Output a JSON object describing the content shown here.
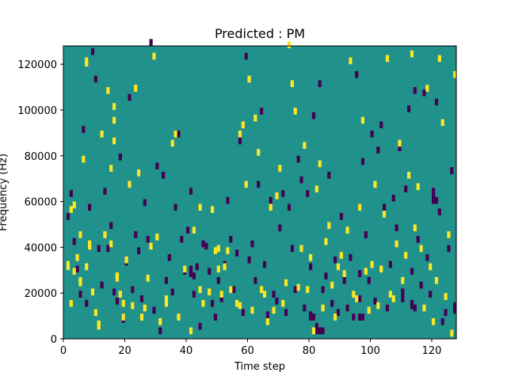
{
  "chart_data": {
    "type": "heatmap",
    "title": "Predicted : PM",
    "xlabel": "Time step",
    "ylabel": "Frequency (Hz)",
    "xlim": [
      0,
      128
    ],
    "ylim": [
      0,
      128000
    ],
    "x_ticks": [
      0,
      20,
      40,
      60,
      80,
      100,
      120
    ],
    "y_ticks": [
      0,
      20000,
      40000,
      60000,
      80000,
      100000,
      120000
    ],
    "y_tick_labels": [
      "0",
      "20000",
      "40000",
      "60000",
      "80000",
      "100000",
      "120000"
    ],
    "n_time_steps": 128,
    "n_freq_bins": 128,
    "bin_width_hz": 1000,
    "value_levels": [
      -1,
      0,
      1
    ],
    "colormap": {
      "-1": "#440154",
      "0": "#21918c",
      "1": "#fde725"
    },
    "background_value": 0,
    "cells_high": [
      [
        1,
        30
      ],
      [
        1,
        31
      ],
      [
        2,
        55
      ],
      [
        3,
        57
      ],
      [
        2,
        14
      ],
      [
        3,
        28
      ],
      [
        4,
        34
      ],
      [
        5,
        23
      ],
      [
        5,
        24
      ],
      [
        5,
        44
      ],
      [
        6,
        77
      ],
      [
        7,
        119
      ],
      [
        7,
        120
      ],
      [
        7,
        30
      ],
      [
        8,
        39
      ],
      [
        8,
        40
      ],
      [
        9,
        19
      ],
      [
        10,
        10
      ],
      [
        11,
        4
      ],
      [
        11,
        5
      ],
      [
        12,
        88
      ],
      [
        13,
        44
      ],
      [
        14,
        107
      ],
      [
        15,
        73
      ],
      [
        15,
        40
      ],
      [
        16,
        100
      ],
      [
        16,
        94
      ],
      [
        16,
        85
      ],
      [
        17,
        25
      ],
      [
        17,
        26
      ],
      [
        18,
        18
      ],
      [
        19,
        14
      ],
      [
        19,
        8
      ],
      [
        20,
        33
      ],
      [
        21,
        66
      ],
      [
        22,
        13
      ],
      [
        23,
        108
      ],
      [
        24,
        71
      ],
      [
        25,
        8
      ],
      [
        26,
        12
      ],
      [
        27,
        25
      ],
      [
        28,
        39
      ],
      [
        29,
        122
      ],
      [
        30,
        43
      ],
      [
        31,
        6
      ],
      [
        33,
        16
      ],
      [
        33,
        14
      ],
      [
        35,
        84
      ],
      [
        36,
        88
      ],
      [
        37,
        8
      ],
      [
        39,
        29
      ],
      [
        41,
        2
      ],
      [
        42,
        46
      ],
      [
        44,
        20
      ],
      [
        44,
        56
      ],
      [
        45,
        14
      ],
      [
        47,
        19
      ],
      [
        48,
        55
      ],
      [
        49,
        37
      ],
      [
        50,
        29
      ],
      [
        50,
        38
      ],
      [
        51,
        18
      ],
      [
        52,
        30
      ],
      [
        53,
        37
      ],
      [
        54,
        20
      ],
      [
        56,
        14
      ],
      [
        57,
        13
      ],
      [
        57,
        88
      ],
      [
        58,
        92
      ],
      [
        59,
        66
      ],
      [
        60,
        112
      ],
      [
        61,
        11
      ],
      [
        62,
        95
      ],
      [
        63,
        80
      ],
      [
        64,
        20
      ],
      [
        65,
        18
      ],
      [
        66,
        6
      ],
      [
        67,
        56
      ],
      [
        68,
        11
      ],
      [
        69,
        61
      ],
      [
        70,
        73
      ],
      [
        71,
        14
      ],
      [
        72,
        23
      ],
      [
        73,
        127
      ],
      [
        74,
        110
      ],
      [
        75,
        98
      ],
      [
        76,
        21
      ],
      [
        77,
        38
      ],
      [
        78,
        83
      ],
      [
        79,
        20
      ],
      [
        80,
        34
      ],
      [
        81,
        2
      ],
      [
        82,
        64
      ],
      [
        83,
        75
      ],
      [
        84,
        12
      ],
      [
        85,
        41
      ],
      [
        86,
        48
      ],
      [
        87,
        22
      ],
      [
        88,
        8
      ],
      [
        89,
        30
      ],
      [
        90,
        35
      ],
      [
        91,
        27
      ],
      [
        92,
        46
      ],
      [
        93,
        120
      ],
      [
        94,
        18
      ],
      [
        95,
        16
      ],
      [
        96,
        56
      ],
      [
        97,
        94
      ],
      [
        98,
        28
      ],
      [
        99,
        11
      ],
      [
        100,
        31
      ],
      [
        101,
        66
      ],
      [
        102,
        13
      ],
      [
        103,
        29
      ],
      [
        104,
        53
      ],
      [
        105,
        121
      ],
      [
        106,
        18
      ],
      [
        107,
        16
      ],
      [
        108,
        40
      ],
      [
        109,
        84
      ],
      [
        110,
        24
      ],
      [
        111,
        35
      ],
      [
        112,
        70
      ],
      [
        113,
        123
      ],
      [
        114,
        47
      ],
      [
        115,
        65
      ],
      [
        116,
        38
      ],
      [
        117,
        12
      ],
      [
        118,
        108
      ],
      [
        119,
        30
      ],
      [
        120,
        6
      ],
      [
        121,
        24
      ],
      [
        122,
        121
      ],
      [
        123,
        93
      ],
      [
        124,
        17
      ],
      [
        125,
        44
      ],
      [
        126,
        1
      ],
      [
        127,
        114
      ]
    ],
    "cells_low": [
      [
        1,
        52
      ],
      [
        2,
        62
      ],
      [
        3,
        41
      ],
      [
        4,
        29
      ],
      [
        5,
        18
      ],
      [
        6,
        90
      ],
      [
        7,
        14
      ],
      [
        8,
        56
      ],
      [
        9,
        124
      ],
      [
        10,
        112
      ],
      [
        11,
        38
      ],
      [
        12,
        22
      ],
      [
        13,
        63
      ],
      [
        14,
        38
      ],
      [
        15,
        48
      ],
      [
        16,
        19
      ],
      [
        17,
        15
      ],
      [
        18,
        78
      ],
      [
        19,
        7
      ],
      [
        20,
        32
      ],
      [
        21,
        104
      ],
      [
        22,
        20
      ],
      [
        23,
        44
      ],
      [
        24,
        37
      ],
      [
        25,
        16
      ],
      [
        26,
        58
      ],
      [
        27,
        42
      ],
      [
        28,
        128
      ],
      [
        29,
        11
      ],
      [
        30,
        74
      ],
      [
        31,
        2
      ],
      [
        32,
        70
      ],
      [
        33,
        24
      ],
      [
        34,
        34
      ],
      [
        35,
        19
      ],
      [
        36,
        56
      ],
      [
        37,
        88
      ],
      [
        38,
        42
      ],
      [
        39,
        28
      ],
      [
        40,
        46
      ],
      [
        41,
        63
      ],
      [
        42,
        26
      ],
      [
        43,
        30
      ],
      [
        44,
        4
      ],
      [
        45,
        40
      ],
      [
        46,
        39
      ],
      [
        47,
        28
      ],
      [
        48,
        14
      ],
      [
        49,
        8
      ],
      [
        50,
        24
      ],
      [
        51,
        16
      ],
      [
        52,
        31
      ],
      [
        53,
        59
      ],
      [
        54,
        42
      ],
      [
        55,
        20
      ],
      [
        56,
        36
      ],
      [
        57,
        85
      ],
      [
        58,
        10
      ],
      [
        59,
        122
      ],
      [
        60,
        33
      ],
      [
        61,
        40
      ],
      [
        62,
        24
      ],
      [
        63,
        66
      ],
      [
        64,
        98
      ],
      [
        65,
        31
      ],
      [
        66,
        9
      ],
      [
        67,
        59
      ],
      [
        68,
        18
      ],
      [
        69,
        15
      ],
      [
        70,
        47
      ],
      [
        71,
        62
      ],
      [
        72,
        10
      ],
      [
        73,
        56
      ],
      [
        74,
        38
      ],
      [
        75,
        20
      ],
      [
        76,
        77
      ],
      [
        77,
        68
      ],
      [
        78,
        12
      ],
      [
        79,
        62
      ],
      [
        80,
        30
      ],
      [
        81,
        96
      ],
      [
        82,
        4
      ],
      [
        83,
        110
      ],
      [
        84,
        20
      ],
      [
        85,
        26
      ],
      [
        86,
        70
      ],
      [
        87,
        14
      ],
      [
        88,
        33
      ],
      [
        89,
        10
      ],
      [
        90,
        52
      ],
      [
        91,
        24
      ],
      [
        92,
        12
      ],
      [
        93,
        34
      ],
      [
        94,
        8
      ],
      [
        95,
        114
      ],
      [
        96,
        27
      ],
      [
        97,
        76
      ],
      [
        98,
        44
      ],
      [
        99,
        24
      ],
      [
        100,
        88
      ],
      [
        101,
        15
      ],
      [
        102,
        81
      ],
      [
        103,
        92
      ],
      [
        104,
        56
      ],
      [
        105,
        12
      ],
      [
        106,
        31
      ],
      [
        107,
        60
      ],
      [
        108,
        47
      ],
      [
        109,
        82
      ],
      [
        110,
        16
      ],
      [
        111,
        64
      ],
      [
        112,
        99
      ],
      [
        113,
        28
      ],
      [
        114,
        107
      ],
      [
        115,
        42
      ],
      [
        116,
        22
      ],
      [
        117,
        106
      ],
      [
        118,
        34
      ],
      [
        119,
        18
      ],
      [
        120,
        63
      ],
      [
        121,
        102
      ],
      [
        122,
        54
      ],
      [
        123,
        6
      ],
      [
        124,
        10
      ],
      [
        125,
        38
      ],
      [
        126,
        72
      ],
      [
        127,
        12
      ],
      [
        41,
        27
      ],
      [
        41,
        28
      ],
      [
        41,
        29
      ],
      [
        80,
        8
      ],
      [
        80,
        9
      ],
      [
        81,
        8
      ],
      [
        82,
        2
      ],
      [
        83,
        2
      ],
      [
        84,
        2
      ],
      [
        113,
        14
      ],
      [
        113,
        13
      ],
      [
        114,
        12
      ],
      [
        127,
        12
      ],
      [
        127,
        13
      ],
      [
        127,
        11
      ],
      [
        96,
        8
      ],
      [
        97,
        8
      ],
      [
        96,
        16
      ],
      [
        110,
        19
      ],
      [
        42,
        18
      ],
      [
        120,
        60
      ],
      [
        120,
        59
      ],
      [
        121,
        59
      ]
    ]
  }
}
